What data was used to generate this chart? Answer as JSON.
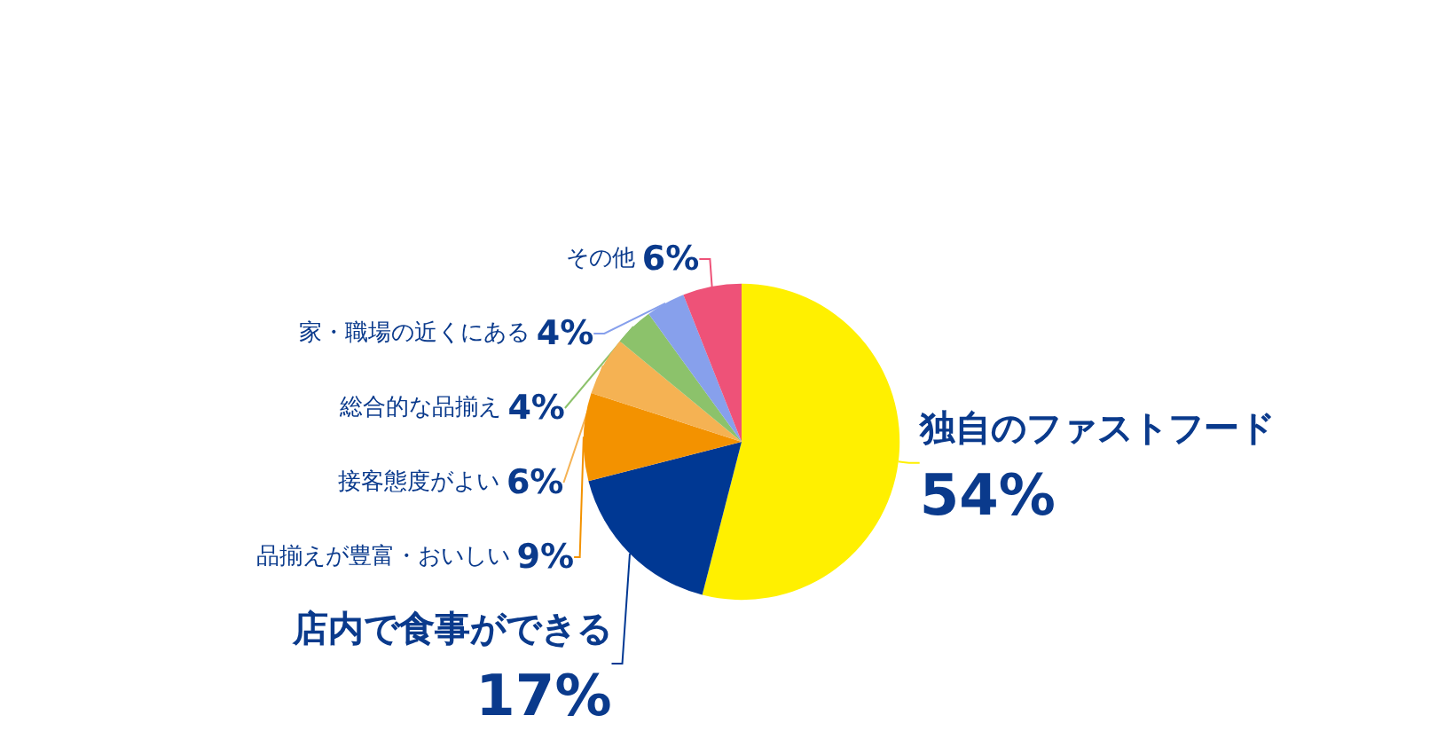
{
  "chart_data": {
    "type": "pie",
    "categories": [
      "独自のファストフード",
      "店内で食事ができる",
      "品揃えが豊富・おいしい",
      "接客態度がよい",
      "総合的な品揃え",
      "家・職場の近くにある",
      "その他"
    ],
    "values": [
      54,
      17,
      9,
      6,
      4,
      4,
      6
    ],
    "value_labels": [
      "54%",
      "17%",
      "9%",
      "6%",
      "4%",
      "4%",
      "6%"
    ],
    "colors": [
      "#fff000",
      "#003893",
      "#f39200",
      "#f5b253",
      "#8cc26b",
      "#87a0ec",
      "#ee5278"
    ],
    "legend": false
  }
}
